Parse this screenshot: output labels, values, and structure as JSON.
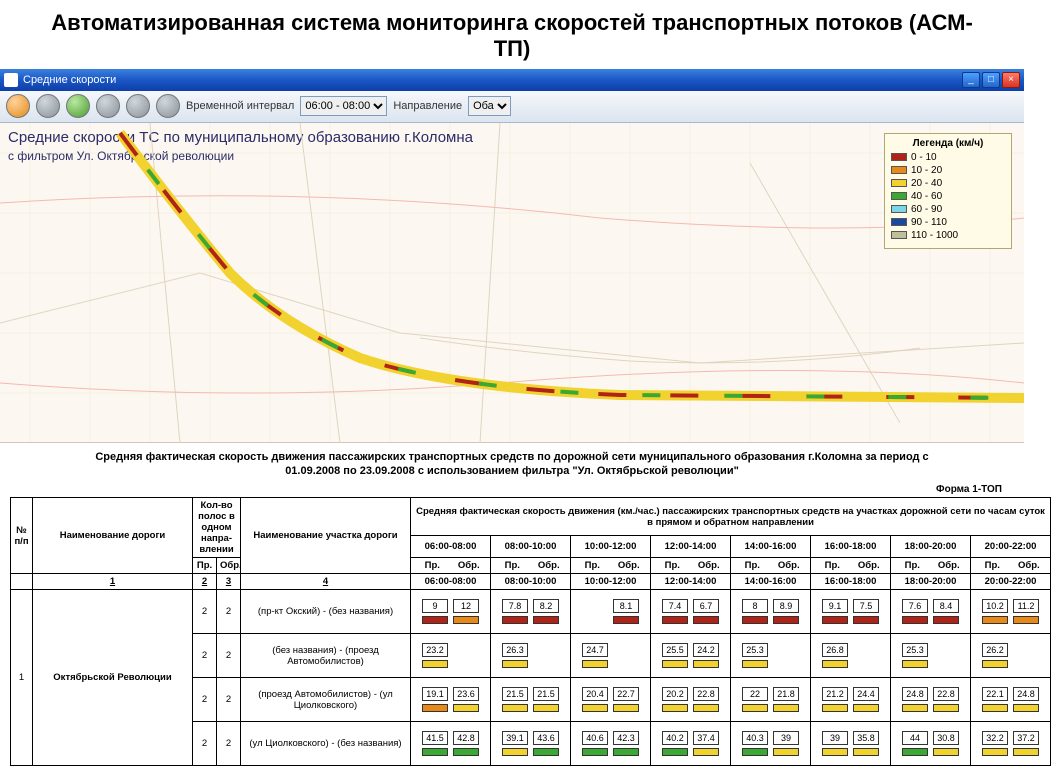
{
  "page_title": "Автоматизированная  система мониторинга скоростей транспортных потоков (АСМ-ТП)",
  "window": {
    "title": "Средние скорости",
    "min": "_",
    "max": "□",
    "close": "×"
  },
  "toolbar": {
    "interval_label": "Временной интервал",
    "interval_value": "06:00 - 08:00",
    "direction_label": "Направление",
    "direction_value": "Оба"
  },
  "map": {
    "title": "Средние скорости ТС по муниципальному образованию г.Коломна",
    "subtitle": "с фильтром Ул. Октябрьской революции"
  },
  "legend": {
    "title": "Легенда (км/ч)",
    "items": [
      {
        "color": "#b02318",
        "label": "0 - 10"
      },
      {
        "color": "#e88a1a",
        "label": "10 - 20"
      },
      {
        "color": "#f2d22e",
        "label": "20 - 40"
      },
      {
        "color": "#3aa832",
        "label": "40 - 60"
      },
      {
        "color": "#7fd5e8",
        "label": "60 - 90"
      },
      {
        "color": "#1a4aa0",
        "label": "90 - 110"
      },
      {
        "color": "#bfbf9a",
        "label": "110 - 1000"
      }
    ]
  },
  "report": {
    "title": "Средняя фактическая скорость движения пассажирских транспортных средств по дорожной сети муниципального образования г.Коломна за период с 01.09.2008 по 23.09.2008 с использованием фильтра \"Ул. Октябрьской революции\"",
    "form_id": "Форма 1-ТОП",
    "hdr": {
      "no": "№ п/п",
      "road": "Наименование дороги",
      "lanes": "Кол-во полос в одном напра-влении",
      "seg": "Наименование участка дороги",
      "speed_hdr": "Средняя фактическая скорость движения (км./час.) пассажирских транспортных средств на участках дорожной сети по часам суток в прямом и обратном направлении",
      "pr": "Пр.",
      "ob": "Обр.",
      "times": [
        "06:00-08:00",
        "08:00-10:00",
        "10:00-12:00",
        "12:00-14:00",
        "14:00-16:00",
        "16:00-18:00",
        "18:00-20:00",
        "20:00-22:00"
      ],
      "idx": [
        "1",
        "2",
        "3",
        "4"
      ]
    },
    "road": {
      "no": "1",
      "name": "Октябрьской Революции"
    },
    "segments": [
      {
        "pr": "2",
        "ob": "2",
        "name": "(пр-кт Окский) - (без названия)",
        "speeds": [
          [
            "9",
            "12"
          ],
          [
            "7.8",
            "8.2"
          ],
          [
            "",
            "8.1"
          ],
          [
            "7.4",
            "6.7"
          ],
          [
            "8",
            "8.9"
          ],
          [
            "9.1",
            "7.5"
          ],
          [
            "7.6",
            "8.4"
          ],
          [
            "10.2",
            "11.2"
          ]
        ],
        "color": "#b02318"
      },
      {
        "pr": "2",
        "ob": "2",
        "name": "(без названия) - (проезд Автомобилистов)",
        "speeds": [
          [
            "23.2",
            ""
          ],
          [
            "26.3",
            ""
          ],
          [
            "24.7",
            ""
          ],
          [
            "25.5",
            "24.2"
          ],
          [
            "25.3",
            ""
          ],
          [
            "26.8",
            ""
          ],
          [
            "25.3",
            ""
          ],
          [
            "26.2",
            ""
          ]
        ],
        "color": "#f2d22e"
      },
      {
        "pr": "2",
        "ob": "2",
        "name": "(проезд Автомобилистов) - (ул Циолковского)",
        "speeds": [
          [
            "19.1",
            "23.6"
          ],
          [
            "21.5",
            "21.5"
          ],
          [
            "20.4",
            "22.7"
          ],
          [
            "20.2",
            "22.8"
          ],
          [
            "22",
            "21.8"
          ],
          [
            "21.2",
            "24.4"
          ],
          [
            "24.8",
            "22.8"
          ],
          [
            "22.1",
            "24.8"
          ]
        ],
        "color": "#f2d22e"
      },
      {
        "pr": "2",
        "ob": "2",
        "name": "(ул Циолковского) - (без названия)",
        "speeds": [
          [
            "41.5",
            "42.8"
          ],
          [
            "39.1",
            "43.6"
          ],
          [
            "40.6",
            "42.3"
          ],
          [
            "40.2",
            "37.4"
          ],
          [
            "40.3",
            "39"
          ],
          [
            "39",
            "35.8"
          ],
          [
            "44",
            "30.8"
          ],
          [
            "32.2",
            "37.2"
          ]
        ],
        "color": "#f2d22e"
      }
    ]
  },
  "speed_colors": {
    "low": "#b02318",
    "med": "#e88a1a",
    "high": "#f2d22e",
    "ok": "#3aa832"
  }
}
